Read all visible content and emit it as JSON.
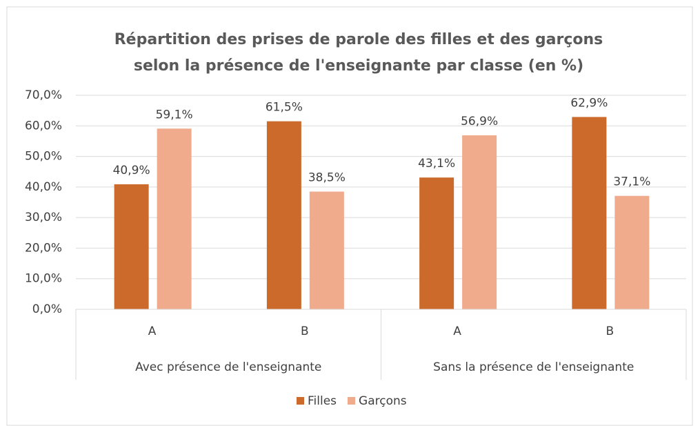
{
  "chart_data": {
    "type": "bar",
    "title": [
      "Répartition des prises de parole des filles et des garçons",
      "selon la présence de l'enseignante par classe (en %)"
    ],
    "categories": [
      "A",
      "B",
      "A",
      "B"
    ],
    "category_groups": [
      "Avec présence de l'enseignante",
      "Sans la présence de l'enseignante"
    ],
    "series": [
      {
        "name": "Filles",
        "color": "#cc6a2c",
        "values": [
          40.9,
          61.5,
          43.1,
          62.9
        ],
        "value_labels": [
          "40,9%",
          "61,5%",
          "43,1%",
          "62,9%"
        ]
      },
      {
        "name": "Garçons",
        "color": "#f0aa8c",
        "values": [
          59.1,
          38.5,
          56.9,
          37.1
        ],
        "value_labels": [
          "59,1%",
          "38,5%",
          "56,9%",
          "37,1%"
        ]
      }
    ],
    "ylim": [
      0,
      70
    ],
    "yticks": [
      {
        "value": 0,
        "label": "0,0%"
      },
      {
        "value": 10,
        "label": "10,0%"
      },
      {
        "value": 20,
        "label": "20,0%"
      },
      {
        "value": 30,
        "label": "30,0%"
      },
      {
        "value": 40,
        "label": "40,0%"
      },
      {
        "value": 50,
        "label": "50,0%"
      },
      {
        "value": 60,
        "label": "60,0%"
      },
      {
        "value": 70,
        "label": "70,0%"
      }
    ],
    "grid": true,
    "legend": "bottom"
  }
}
